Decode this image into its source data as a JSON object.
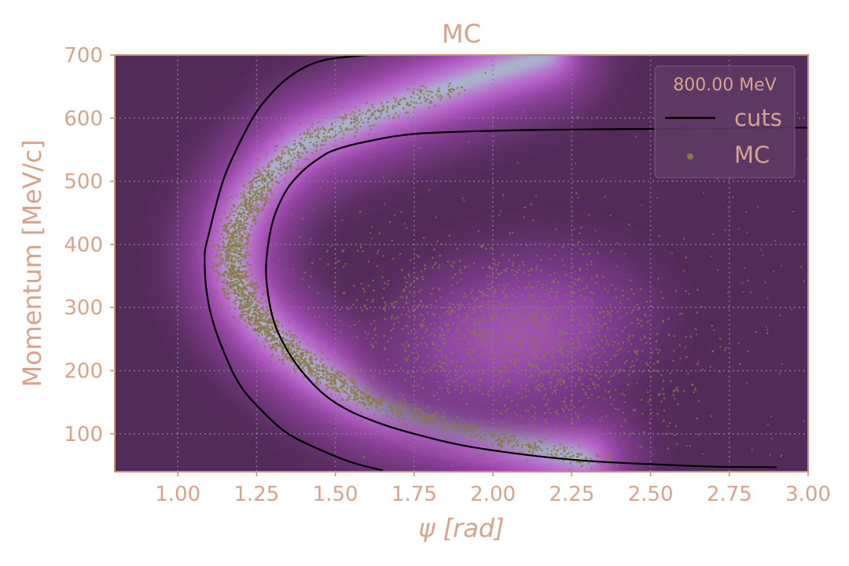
{
  "chart_data": {
    "type": "scatter",
    "title": "MC",
    "xlabel": "ψ [rad]",
    "ylabel": "Momentum [MeV/c]",
    "xlim": [
      0.8,
      3.0
    ],
    "ylim": [
      40,
      700
    ],
    "xticks": [
      1.0,
      1.25,
      1.5,
      1.75,
      2.0,
      2.25,
      2.5,
      2.75,
      3.0
    ],
    "xtick_labels": [
      "1.00",
      "1.25",
      "1.50",
      "1.75",
      "2.00",
      "2.25",
      "2.50",
      "2.75",
      "3.00"
    ],
    "yticks": [
      100,
      200,
      300,
      400,
      500,
      600,
      700
    ],
    "ytick_labels": [
      "100",
      "200",
      "300",
      "400",
      "500",
      "600",
      "700"
    ],
    "grid": true,
    "legend": {
      "title": "800.00 MeV",
      "placement": "top-right",
      "entries": [
        {
          "label": "cuts",
          "kind": "line",
          "color": "#000000"
        },
        {
          "label": "MC",
          "kind": "marker",
          "color": "#8a7848"
        }
      ]
    },
    "series": [
      {
        "name": "cuts",
        "kind": "line",
        "segments": [
          {
            "x": [
              1.6,
              1.5,
              1.45,
              1.4,
              1.35,
              1.3,
              1.25,
              1.2,
              1.15,
              1.12,
              1.1,
              1.09,
              1.085,
              1.09,
              1.11,
              1.15,
              1.2,
              1.27,
              1.35,
              1.45,
              1.55,
              1.65
            ],
            "y": [
              700,
              695,
              690,
              680,
              664,
              641,
              610,
              565,
              510,
              460,
              420,
              400,
              380,
              330,
              280,
              225,
              175,
              135,
              100,
              75,
              55,
              42
            ]
          },
          {
            "x": [
              3.0,
              2.5,
              2.25,
              2.0,
              1.75,
              1.6,
              1.5,
              1.45,
              1.4,
              1.35,
              1.31,
              1.29,
              1.28,
              1.29,
              1.31,
              1.35,
              1.4,
              1.47,
              1.55,
              1.65,
              1.75,
              1.9,
              2.1,
              2.3,
              2.5,
              2.7,
              2.9
            ],
            "y": [
              585,
              583,
              582,
              580,
              575,
              563,
              550,
              537,
              518,
              490,
              450,
              410,
              360,
              310,
              270,
              230,
              195,
              160,
              135,
              115,
              100,
              82,
              67,
              57,
              52,
              48,
              47
            ]
          }
        ]
      },
      {
        "name": "MC",
        "kind": "scatter",
        "points": "approx. 4000 simulated events: a dense crescent band along the inner cut (p 40–650 MeV/c, psi 1.1–1.7) and a diffuse cluster centred near psi 2.05, p 250 MeV/c"
      }
    ],
    "density_background": {
      "colormap": "purple-magenta-cyan",
      "base_color": "#532b59",
      "peak_region": "crescent band between the two cuts, brightest near psi 1.2, p 300-450"
    }
  },
  "colors": {
    "axes_face": "#532b59",
    "axes_edge": "#c8907a",
    "text": "#d7a48b",
    "grid": "#8a7a98",
    "cut_line": "#000000",
    "points": "#8a7848"
  }
}
